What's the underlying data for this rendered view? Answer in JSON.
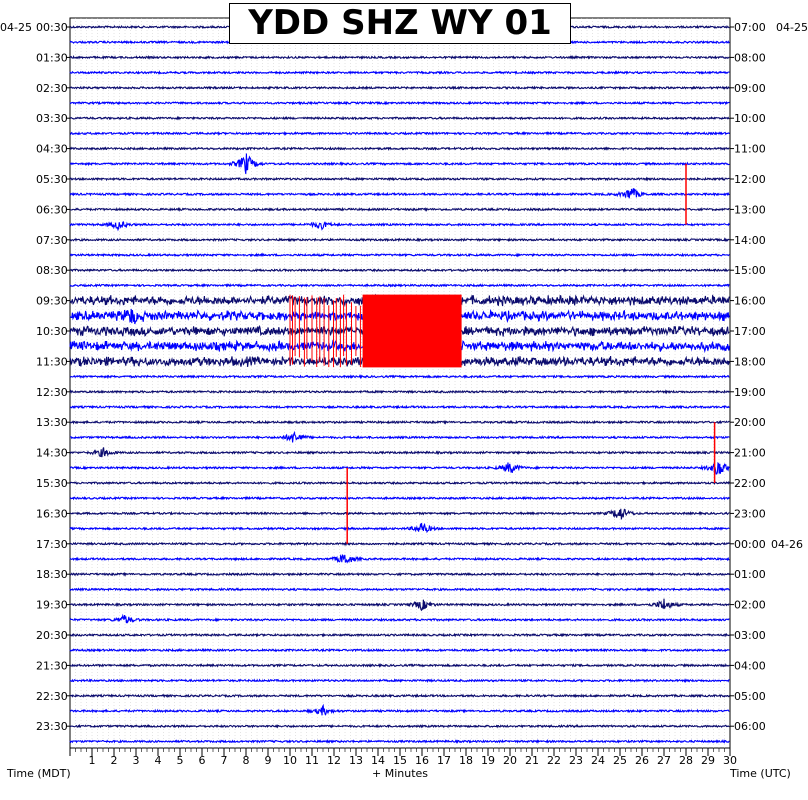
{
  "title": "YDD SHZ WY 01",
  "left_date": "04-25",
  "right_date": "04-26",
  "right_start_date": "04-25",
  "xlabel_left": "Time (MDT)",
  "xlabel_center": "+ Minutes",
  "xlabel_right": "Time (UTC)",
  "colors": {
    "dark": "#0b0b6e",
    "blue": "#0000ff",
    "clip": "#ff0000",
    "background": "#ffffff"
  },
  "chart_data": {
    "type": "helicorder",
    "x_ticks": [
      1,
      2,
      3,
      4,
      5,
      6,
      7,
      8,
      9,
      10,
      11,
      12,
      13,
      14,
      15,
      16,
      17,
      18,
      19,
      20,
      21,
      22,
      23,
      24,
      25,
      26,
      27,
      28,
      29,
      30
    ],
    "xlim": [
      0,
      30
    ],
    "left_time_labels": [
      "00:30",
      "01:30",
      "02:30",
      "03:30",
      "04:30",
      "05:30",
      "06:30",
      "07:30",
      "08:30",
      "09:30",
      "10:30",
      "11:30",
      "12:30",
      "13:30",
      "14:30",
      "15:30",
      "16:30",
      "17:30",
      "18:30",
      "19:30",
      "20:30",
      "21:30",
      "22:30",
      "23:30"
    ],
    "right_time_labels": [
      "07:00",
      "08:00",
      "09:00",
      "10:00",
      "11:00",
      "12:00",
      "13:00",
      "14:00",
      "15:00",
      "16:00",
      "17:00",
      "18:00",
      "19:00",
      "20:00",
      "21:00",
      "22:00",
      "23:00",
      "00:00",
      "01:00",
      "02:00",
      "03:00",
      "04:00",
      "05:00",
      "06:00"
    ],
    "trace_count": 48,
    "minutes_per_trace": 30,
    "trace_colors_cycle": [
      "dark",
      "blue"
    ],
    "events": [
      {
        "trace": 9,
        "minute": 8.0,
        "amp": 3.5
      },
      {
        "trace": 11,
        "minute": 25.5,
        "amp": 2.5
      },
      {
        "trace": 13,
        "minute": 2.2,
        "amp": 1.5
      },
      {
        "trace": 13,
        "minute": 11.4,
        "amp": 1.5
      },
      {
        "trace": 19,
        "minute": 2.8,
        "amp": 2.0
      },
      {
        "trace": 27,
        "minute": 10.2,
        "amp": 2.0
      },
      {
        "trace": 28,
        "minute": 1.5,
        "amp": 1.5
      },
      {
        "trace": 29,
        "minute": 20.0,
        "amp": 2.0
      },
      {
        "trace": 29,
        "minute": 29.5,
        "amp": 3.0
      },
      {
        "trace": 32,
        "minute": 25.0,
        "amp": 2.5
      },
      {
        "trace": 33,
        "minute": 16.0,
        "amp": 2.0
      },
      {
        "trace": 35,
        "minute": 12.5,
        "amp": 2.0
      },
      {
        "trace": 38,
        "minute": 27.0,
        "amp": 2.0
      },
      {
        "trace": 38,
        "minute": 16.0,
        "amp": 1.8
      },
      {
        "trace": 39,
        "minute": 2.5,
        "amp": 1.5
      },
      {
        "trace": 45,
        "minute": 11.5,
        "amp": 1.5
      }
    ],
    "noisy_band": {
      "trace_start": 18,
      "trace_end": 22,
      "amp": 1.6
    },
    "clipped_blocks": [
      {
        "trace_start": 18,
        "trace_end": 22,
        "minute_start": 13.3,
        "minute_end": 17.8
      },
      {
        "trace_start": 18,
        "trace_end": 22,
        "minute_start": 10.0,
        "minute_end": 13.3,
        "sparse": true
      }
    ],
    "spikes": [
      {
        "trace": 10,
        "minute": 28.0,
        "top_trace": 9,
        "bottom_trace": 13
      },
      {
        "trace": 30,
        "minute": 12.6,
        "top_trace": 29,
        "bottom_trace": 34
      },
      {
        "trace": 28,
        "minute": 29.3,
        "top_trace": 26,
        "bottom_trace": 30
      }
    ]
  }
}
